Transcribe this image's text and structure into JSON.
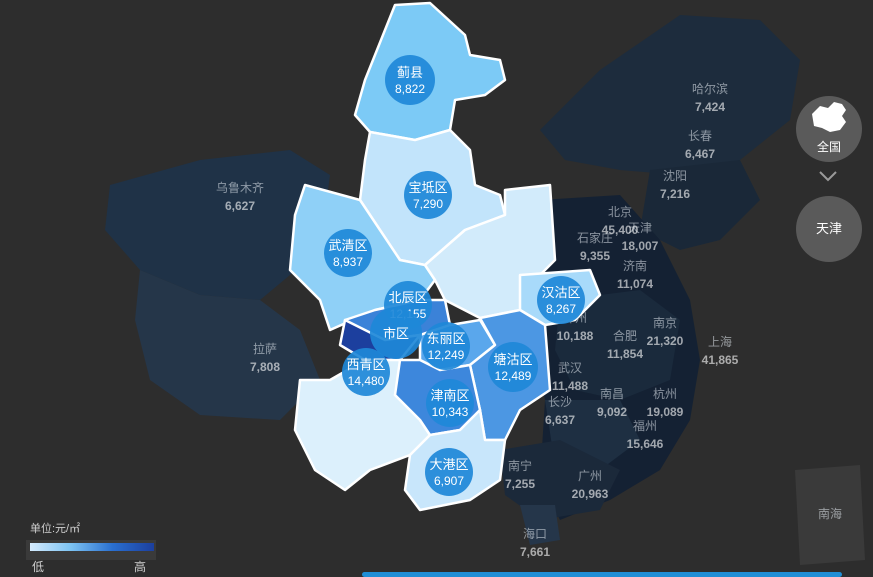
{
  "legend": {
    "unit": "单位:元/㎡",
    "low": "低",
    "high": "高"
  },
  "nav": {
    "national": "全国",
    "local": "天津"
  },
  "background_cities": [
    {
      "name": "哈尔滨",
      "value": "7,424"
    },
    {
      "name": "长春",
      "value": "6,467"
    },
    {
      "name": "沈阳",
      "value": "7,216"
    },
    {
      "name": "乌鲁木齐",
      "value": "6,627"
    },
    {
      "name": "北京",
      "value": "45,400"
    },
    {
      "name": "天津",
      "value": "18,007"
    },
    {
      "name": "石家庄",
      "value": "9,355"
    },
    {
      "name": "济南",
      "value": "11,074"
    },
    {
      "name": "郑州",
      "value": "10,188"
    },
    {
      "name": "南京",
      "value": "21,320"
    },
    {
      "name": "上海",
      "value": "41,865"
    },
    {
      "name": "拉萨",
      "value": "7,808"
    },
    {
      "name": "合肥",
      "value": "11,854"
    },
    {
      "name": "武汉",
      "value": "11,488"
    },
    {
      "name": "杭州",
      "value": "19,089"
    },
    {
      "name": "长沙",
      "value": "6,637"
    },
    {
      "name": "南昌",
      "value": "9,092"
    },
    {
      "name": "福州",
      "value": "15,646"
    },
    {
      "name": "广州",
      "value": "20,963"
    },
    {
      "name": "南宁",
      "value": "7,255"
    },
    {
      "name": "海口",
      "value": "7,661"
    },
    {
      "name": "南海",
      "value": ""
    }
  ],
  "districts": [
    {
      "name": "蓟县",
      "value": "8,822"
    },
    {
      "name": "宝坻区",
      "value": "7,290"
    },
    {
      "name": "武清区",
      "value": "8,937"
    },
    {
      "name": "北辰区",
      "value": "12,155"
    },
    {
      "name": "汉沽区",
      "value": "8,267"
    },
    {
      "name": "市区",
      "value": ""
    },
    {
      "name": "东丽区",
      "value": "12,249"
    },
    {
      "name": "西青区",
      "value": "14,480"
    },
    {
      "name": "塘沽区",
      "value": "12,489"
    },
    {
      "name": "津南区",
      "value": "10,343"
    },
    {
      "name": "大港区",
      "value": "6,907"
    }
  ],
  "colors": {
    "background": "#2d2d2d",
    "china_land": "#22303f",
    "tianjin_border": "#ffffff",
    "bubble": "#1e88d8",
    "legend_low": "#d6ecff",
    "legend_high": "#1c3f9e"
  }
}
